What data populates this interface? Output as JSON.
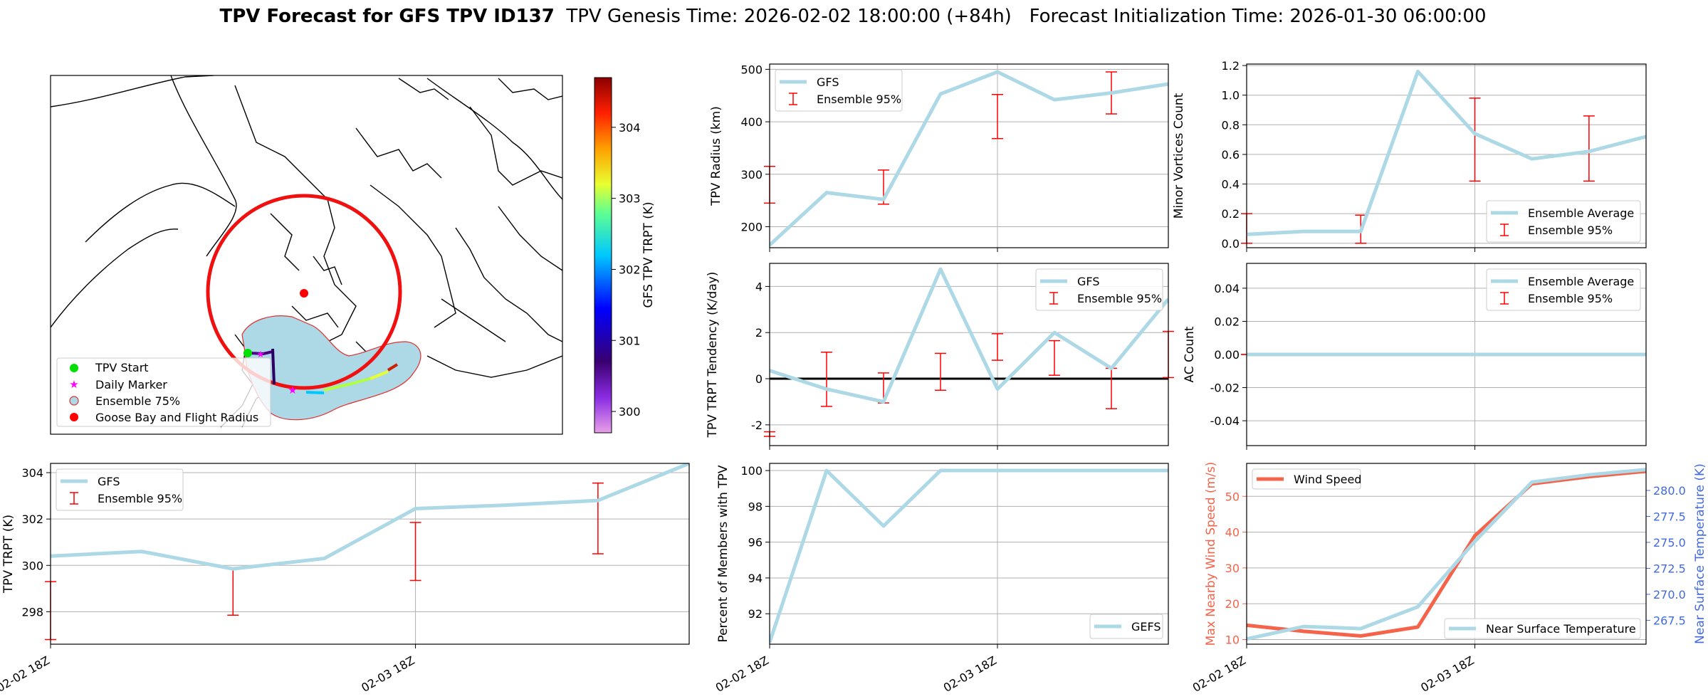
{
  "header": {
    "title_bold": "TPV Forecast for GFS TPV ID137",
    "title_rest": "  TPV Genesis Time: 2026-02-02 18:00:00 (+84h)   Forecast Initialization Time: 2026-01-30 06:00:00"
  },
  "colors": {
    "gfs_line": "#add8e6",
    "errorbar": "#ff0000",
    "wind": "#f4634a",
    "temp_axis": "#4169e1",
    "grid": "#b0b0b0",
    "map_circle": "#f01010",
    "plume_fill": "#add8e6",
    "plume_edge": "#e03030"
  },
  "map_panel": {
    "colorbar_label": "GFS TPV TRPT (K)",
    "colorbar_ticks": [
      300,
      301,
      302,
      303,
      304
    ],
    "colorbar_range": [
      299.7,
      304.7
    ],
    "legend": [
      "TPV Start",
      "Daily Marker",
      "Ensemble 75%",
      "Goose Bay and Flight Radius"
    ]
  },
  "chart_data": [
    {
      "id": "radius",
      "type": "line",
      "ylabel": "TPV Radius (km)",
      "ylim": [
        160,
        510
      ],
      "yticks": [
        200,
        300,
        400,
        500
      ],
      "grid_y": true,
      "line": {
        "name": "GFS",
        "x": [
          0,
          0.25,
          0.5,
          0.75,
          1,
          1.25,
          1.5,
          1.75
        ],
        "values": [
          165,
          265,
          252,
          453,
          495,
          442,
          455,
          472
        ]
      },
      "errorbars": [
        {
          "x": 0,
          "low": 245,
          "high": 315
        },
        {
          "x": 0.5,
          "low": 243,
          "high": 308
        },
        {
          "x": 1,
          "low": 368,
          "high": 452
        },
        {
          "x": 1.5,
          "low": 415,
          "high": 495
        }
      ],
      "legend": [
        "GFS",
        "Ensemble 95%"
      ],
      "legend_pos": "upper-left"
    },
    {
      "id": "minor",
      "type": "line",
      "ylabel": "Minor Vortices Count",
      "ylim": [
        -0.03,
        1.21
      ],
      "yticks": [
        0.0,
        0.2,
        0.4,
        0.6,
        0.8,
        1.0,
        1.2
      ],
      "tick_decimals": 1,
      "grid_y": true,
      "line": {
        "name": "Ensemble Average",
        "x": [
          0,
          0.25,
          0.5,
          0.75,
          1,
          1.25,
          1.5,
          1.75
        ],
        "values": [
          0.06,
          0.08,
          0.08,
          1.16,
          0.74,
          0.57,
          0.62,
          0.72
        ]
      },
      "errorbars": [
        {
          "x": 0,
          "low": 0.0,
          "high": 0.2
        },
        {
          "x": 0.5,
          "low": 0.0,
          "high": 0.19
        },
        {
          "x": 1,
          "low": 0.42,
          "high": 0.98
        },
        {
          "x": 1.5,
          "low": 0.42,
          "high": 0.86
        }
      ],
      "legend": [
        "Ensemble Average",
        "Ensemble 95%"
      ],
      "legend_pos": "lower-right"
    },
    {
      "id": "tendency",
      "type": "line",
      "ylabel": "TPV TRPT Tendency (K/day)",
      "ylim": [
        -2.9,
        5.0
      ],
      "yticks": [
        -2,
        0,
        2,
        4
      ],
      "grid_y": true,
      "zero_line": true,
      "line": {
        "name": "GFS",
        "x": [
          0,
          0.25,
          0.5,
          0.75,
          1,
          1.25,
          1.5,
          1.75
        ],
        "values": [
          0.35,
          -0.45,
          -1.0,
          4.75,
          -0.45,
          2.0,
          0.45,
          3.45
        ]
      },
      "errorbars": [
        {
          "x": 0,
          "low": -2.5,
          "high": -2.3
        },
        {
          "x": 0.25,
          "low": -1.2,
          "high": 1.15
        },
        {
          "x": 0.5,
          "low": -1.05,
          "high": 0.25
        },
        {
          "x": 0.75,
          "low": -0.5,
          "high": 1.1
        },
        {
          "x": 1,
          "low": 0.8,
          "high": 1.95
        },
        {
          "x": 1.25,
          "low": 0.15,
          "high": 1.65
        },
        {
          "x": 1.5,
          "low": -1.3,
          "high": 0.45
        },
        {
          "x": 1.75,
          "low": 0.05,
          "high": 2.05
        }
      ],
      "legend": [
        "GFS",
        "Ensemble 95%"
      ],
      "legend_pos": "upper-right"
    },
    {
      "id": "ac",
      "type": "line",
      "ylabel": "AC Count",
      "ylim": [
        -0.055,
        0.055
      ],
      "yticks": [
        -0.04,
        -0.02,
        0.0,
        0.02,
        0.04
      ],
      "tick_decimals": 2,
      "grid_y": true,
      "line": {
        "name": "Ensemble Average",
        "x": [
          0,
          0.25,
          0.5,
          0.75,
          1,
          1.25,
          1.5,
          1.75
        ],
        "values": [
          0,
          0,
          0,
          0,
          0,
          0,
          0,
          0
        ]
      },
      "errorbars": [
        {
          "x": 0,
          "low": 0,
          "high": 0
        },
        {
          "x": 0.5,
          "low": 0,
          "high": 0
        },
        {
          "x": 1,
          "low": 0,
          "high": 0
        },
        {
          "x": 1.5,
          "low": 0,
          "high": 0
        }
      ],
      "legend": [
        "Ensemble Average",
        "Ensemble 95%"
      ],
      "legend_pos": "upper-right"
    },
    {
      "id": "trpt",
      "type": "line",
      "ylabel": "TPV TRPT (K)",
      "ylim": [
        296.6,
        304.4
      ],
      "yticks": [
        298,
        300,
        302,
        304
      ],
      "grid_y": true,
      "xticks": [
        "02-02 18Z",
        "02-03 18Z"
      ],
      "line": {
        "name": "GFS",
        "x": [
          0,
          0.25,
          0.5,
          0.75,
          1,
          1.25,
          1.5,
          1.75
        ],
        "values": [
          300.4,
          300.6,
          299.85,
          300.3,
          302.45,
          302.6,
          302.8,
          304.4
        ]
      },
      "errorbars": [
        {
          "x": 0,
          "low": 296.8,
          "high": 299.3
        },
        {
          "x": 0.5,
          "low": 297.85,
          "high": 299.85
        },
        {
          "x": 1,
          "low": 299.35,
          "high": 301.85
        },
        {
          "x": 1.5,
          "low": 300.5,
          "high": 303.55
        }
      ],
      "legend": [
        "GFS",
        "Ensemble 95%"
      ],
      "legend_pos": "upper-left"
    },
    {
      "id": "percent",
      "type": "line",
      "ylabel": "Percent of Members with TPV",
      "ylim": [
        90.3,
        100.4
      ],
      "yticks": [
        92,
        94,
        96,
        98,
        100
      ],
      "grid_y": true,
      "xticks": [
        "02-02 18Z",
        "02-03 18Z"
      ],
      "line": {
        "name": "GEFS",
        "x": [
          0,
          0.25,
          0.5,
          0.75,
          1,
          1.25,
          1.5,
          1.75
        ],
        "values": [
          90.4,
          100.0,
          96.9,
          100.0,
          100.0,
          100.0,
          100.0,
          100.0
        ]
      },
      "legend": [
        "GEFS"
      ],
      "legend_pos": "lower-right"
    },
    {
      "id": "wind",
      "type": "line",
      "ylabel": "Max Nearby Wind Speed (m/s)",
      "ylabel2": "Near Surface Temperature (K)",
      "ylim": [
        8.7,
        59.2
      ],
      "yticks": [
        10,
        20,
        30,
        40,
        50
      ],
      "grid_y": true,
      "ylim2": [
        265.2,
        282.6
      ],
      "yticks2": [
        267.5,
        270.0,
        272.5,
        275.0,
        277.5,
        280.0
      ],
      "tick_decimals2": 1,
      "xticks": [
        "02-02 18Z",
        "02-03 18Z"
      ],
      "series": [
        {
          "name": "Wind Speed",
          "axis": "left",
          "x": [
            0,
            0.25,
            0.5,
            0.75,
            1,
            1.25,
            1.5,
            1.75
          ],
          "values": [
            14.0,
            12.3,
            11.0,
            13.5,
            39.0,
            53.5,
            55.5,
            57.0
          ]
        },
        {
          "name": "Near Surface Temperature",
          "axis": "right",
          "x": [
            0,
            0.25,
            0.5,
            0.75,
            1,
            1.25,
            1.5,
            1.75
          ],
          "values": [
            265.7,
            266.9,
            266.7,
            268.8,
            275.1,
            280.8,
            281.5,
            282.0
          ]
        }
      ],
      "legend": [
        "Wind Speed",
        "Near Surface Temperature"
      ]
    }
  ]
}
